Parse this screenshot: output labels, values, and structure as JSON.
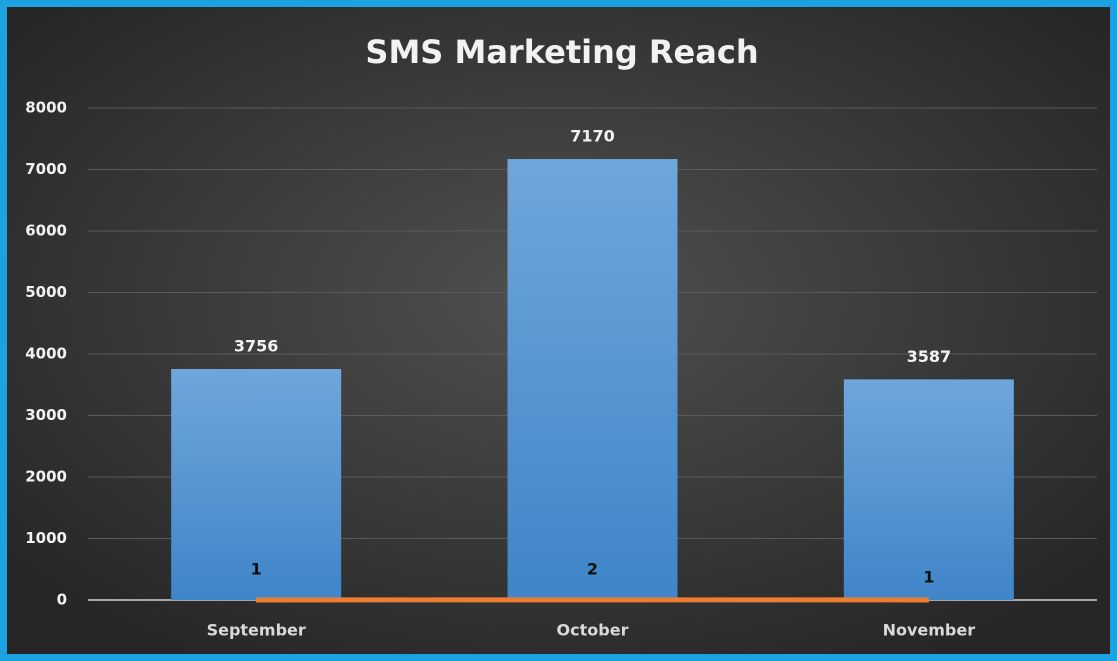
{
  "chart_data": {
    "type": "bar",
    "title": "SMS Marketing Reach",
    "categories": [
      "September",
      "October",
      "November"
    ],
    "series": [
      {
        "type": "bar",
        "color": "#5b9bd5",
        "values": [
          3756,
          7170,
          3587
        ]
      },
      {
        "type": "line",
        "color": "#ed7d31",
        "values": [
          1,
          2,
          1
        ]
      }
    ],
    "ylim": [
      0,
      8000
    ],
    "yticks": [
      0,
      1000,
      2000,
      3000,
      4000,
      5000,
      6000,
      7000,
      8000
    ],
    "grid": true
  }
}
